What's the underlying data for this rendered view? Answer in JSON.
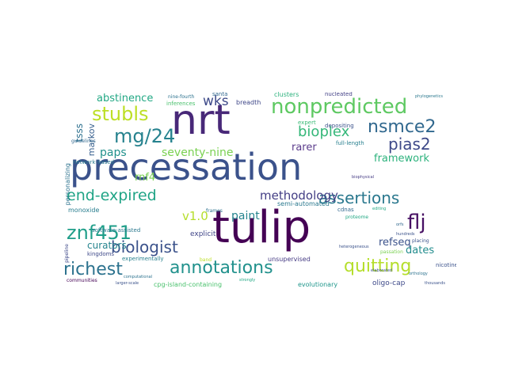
{
  "words": [
    {
      "text": "precessation",
      "color": "#3b528b"
    },
    {
      "text": "tulip",
      "color": "#440154"
    },
    {
      "text": "nrt",
      "color": "#482878"
    },
    {
      "text": "nonpredicted",
      "color": "#5ec962"
    },
    {
      "text": "nsmce2",
      "color": "#31688e"
    },
    {
      "text": "mg/24",
      "color": "#26828e"
    },
    {
      "text": "stubls",
      "color": "#bddf26"
    },
    {
      "text": "pias2",
      "color": "#3e4989"
    },
    {
      "text": "bioplex",
      "color": "#35b779"
    },
    {
      "text": "end-expired",
      "color": "#20a486"
    },
    {
      "text": "assertions",
      "color": "#2a788e"
    },
    {
      "text": "znf451",
      "color": "#1f9e89"
    },
    {
      "text": "richest",
      "color": "#2c728e"
    },
    {
      "text": "annotations",
      "color": "#21918c"
    },
    {
      "text": "quitting",
      "color": "#b5de2b"
    },
    {
      "text": "flj",
      "color": "#471063"
    },
    {
      "text": "biologist",
      "color": "#3b528b"
    },
    {
      "text": "methodology",
      "color": "#433e85"
    },
    {
      "text": "seventy-nine",
      "color": "#7ad151"
    },
    {
      "text": "paint",
      "color": "#25848e"
    },
    {
      "text": "v1.0",
      "color": "#b5de2b"
    },
    {
      "text": "abstinence",
      "color": "#22a884"
    },
    {
      "text": "wks",
      "color": "#3e4a89"
    },
    {
      "text": "paps",
      "color": "#21918c"
    },
    {
      "text": "rnf4",
      "color": "#7ad151"
    },
    {
      "text": "framework",
      "color": "#2db27d"
    },
    {
      "text": "refseq",
      "color": "#3b528b"
    },
    {
      "text": "dates",
      "color": "#228c8d"
    },
    {
      "text": "curators",
      "color": "#25848e"
    },
    {
      "text": "rarer",
      "color": "#5b3c8c"
    },
    {
      "text": "clusters",
      "color": "#2db27d"
    },
    {
      "text": "explicit",
      "color": "#404688"
    },
    {
      "text": "breadth",
      "color": "#3f4788"
    },
    {
      "text": "inferences",
      "color": "#4ac16d"
    },
    {
      "text": "santa",
      "color": "#31688e"
    },
    {
      "text": "semi-automated",
      "color": "#2a788e"
    },
    {
      "text": "expert",
      "color": "#3aba76"
    },
    {
      "text": "full-length",
      "color": "#277f8e"
    },
    {
      "text": "depositing",
      "color": "#3b528b"
    },
    {
      "text": "nucleated",
      "color": "#424086"
    },
    {
      "text": "markov",
      "color": "#355e8d"
    },
    {
      "text": "tsss",
      "color": "#2d708e"
    },
    {
      "text": "monoxide",
      "color": "#287d8e"
    },
    {
      "text": "software-assisted",
      "color": "#2a788e"
    },
    {
      "text": "kingdoms",
      "color": "#3e4989"
    },
    {
      "text": "experimentally",
      "color": "#27808e"
    },
    {
      "text": "unsupervised",
      "color": "#443a83"
    },
    {
      "text": "evolutionary",
      "color": "#1f968b"
    },
    {
      "text": "cpg-island-containing",
      "color": "#4ac16d"
    },
    {
      "text": "oligo-cap",
      "color": "#3e4a89"
    },
    {
      "text": "nicotine",
      "color": "#3b528b"
    },
    {
      "text": "cdnas",
      "color": "#31688e"
    },
    {
      "text": "proteome",
      "color": "#22a884"
    },
    {
      "text": "personalizing",
      "color": "#2c728e"
    },
    {
      "text": "network-based",
      "color": "#2a788e"
    },
    {
      "text": "guidelines",
      "color": "#31688e"
    },
    {
      "text": "frames",
      "color": "#2c728e"
    },
    {
      "text": "pipeline",
      "color": "#3e4989"
    },
    {
      "text": "communities",
      "color": "#440154"
    },
    {
      "text": "larger-scale",
      "color": "#3b528b"
    },
    {
      "text": "strongly",
      "color": "#22a884"
    },
    {
      "text": "computational",
      "color": "#2c728e"
    },
    {
      "text": "nine-fourth",
      "color": "#2c728e"
    },
    {
      "text": "passation",
      "color": "#7ad151"
    },
    {
      "text": "thousands",
      "color": "#3b528b"
    },
    {
      "text": "biophysical",
      "color": "#443a83"
    },
    {
      "text": "phylogenetics",
      "color": "#2a788e"
    },
    {
      "text": "placing",
      "color": "#3b528b"
    },
    {
      "text": "orthology",
      "color": "#2c728e"
    },
    {
      "text": "band",
      "color": "#bddf26"
    },
    {
      "text": "heterogeneous",
      "color": "#3b528b"
    },
    {
      "text": "hundreds",
      "color": "#3b528b"
    },
    {
      "text": "orfs",
      "color": "#31688e"
    },
    {
      "text": "editing",
      "color": "#22a884"
    },
    {
      "text": "elaborated",
      "color": "#3b528b"
    }
  ]
}
